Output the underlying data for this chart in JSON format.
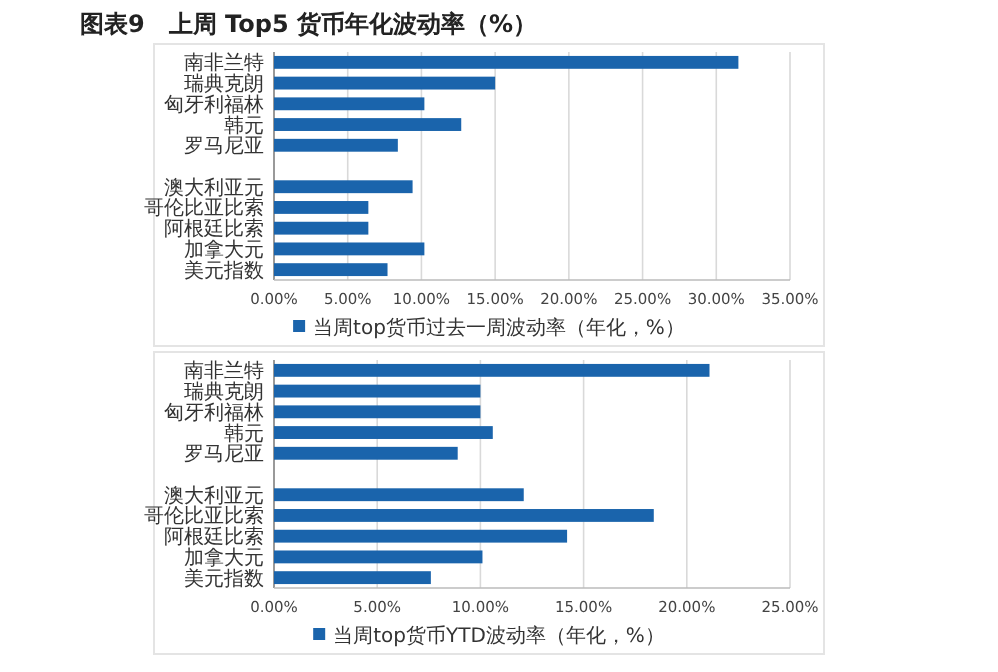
{
  "chart_data": [
    {
      "type": "bar",
      "orientation": "horizontal",
      "title": "图表9　上周 Top5 货币年化波动率（%）",
      "categories": [
        "南非兰特",
        "瑞典克朗",
        "匈牙利福林",
        "韩元",
        "罗马尼亚",
        null,
        "澳大利亚元",
        "哥伦比亚比索",
        "阿根廷比索",
        "加拿大元",
        "美元指数"
      ],
      "series": [
        {
          "name": "当周top货币过去一周波动率（年化，%）",
          "color": "#1a64ac",
          "values": [
            31.5,
            15.0,
            10.2,
            12.7,
            8.4,
            null,
            9.4,
            6.4,
            6.4,
            10.2,
            7.7
          ]
        }
      ],
      "xlim": [
        0,
        35
      ],
      "xticks": [
        {
          "value": 0,
          "label": "0.00%"
        },
        {
          "value": 5,
          "label": "5.00%"
        },
        {
          "value": 10,
          "label": "10.00%"
        },
        {
          "value": 15,
          "label": "15.00%"
        },
        {
          "value": 20,
          "label": "20.00%"
        },
        {
          "value": 25,
          "label": "25.00%"
        },
        {
          "value": 30,
          "label": "30.00%"
        },
        {
          "value": 35,
          "label": "35.00%"
        }
      ],
      "grid": "x",
      "legend": "bottom"
    },
    {
      "type": "bar",
      "orientation": "horizontal",
      "categories": [
        "南非兰特",
        "瑞典克朗",
        "匈牙利福林",
        "韩元",
        "罗马尼亚",
        null,
        "澳大利亚元",
        "哥伦比亚比索",
        "阿根廷比索",
        "加拿大元",
        "美元指数"
      ],
      "series": [
        {
          "name": "当周top货币YTD波动率（年化，%）",
          "color": "#1a64ac",
          "values": [
            21.1,
            10.0,
            10.0,
            10.6,
            8.9,
            null,
            12.1,
            18.4,
            14.2,
            10.1,
            7.6
          ]
        }
      ],
      "xlim": [
        0,
        25
      ],
      "xticks": [
        {
          "value": 0,
          "label": "0.00%"
        },
        {
          "value": 5,
          "label": "5.00%"
        },
        {
          "value": 10,
          "label": "10.00%"
        },
        {
          "value": 15,
          "label": "15.00%"
        },
        {
          "value": 20,
          "label": "20.00%"
        },
        {
          "value": 25,
          "label": "25.00%"
        }
      ],
      "grid": "x",
      "legend": "bottom"
    }
  ]
}
